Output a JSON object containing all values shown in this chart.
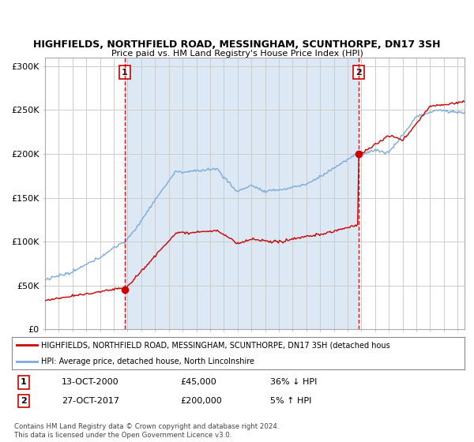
{
  "title_line1": "HIGHFIELDS, NORTHFIELD ROAD, MESSINGHAM, SCUNTHORPE, DN17 3SH",
  "title_line2": "Price paid vs. HM Land Registry's House Price Index (HPI)",
  "background_color": "#ffffff",
  "plot_bg_color": "#ffffff",
  "grid_color": "#cccccc",
  "hpi_color": "#7aaadd",
  "price_color": "#cc0000",
  "shade_color": "#dde8f5",
  "sale1_price": 45000,
  "sale2_price": 200000,
  "legend_line1": "HIGHFIELDS, NORTHFIELD ROAD, MESSINGHAM, SCUNTHORPE, DN17 3SH (detached hous",
  "legend_line2": "HPI: Average price, detached house, North Lincolnshire",
  "table_row1_num": "1",
  "table_row1_date": "13-OCT-2000",
  "table_row1_price": "£45,000",
  "table_row1_hpi": "36% ↓ HPI",
  "table_row2_num": "2",
  "table_row2_date": "27-OCT-2017",
  "table_row2_price": "£200,000",
  "table_row2_hpi": "5% ↑ HPI",
  "copyright_text": "Contains HM Land Registry data © Crown copyright and database right 2024.\nThis data is licensed under the Open Government Licence v3.0.",
  "xmin": 1995,
  "xmax": 2025.5,
  "ymin": 0,
  "ymax": 310000
}
